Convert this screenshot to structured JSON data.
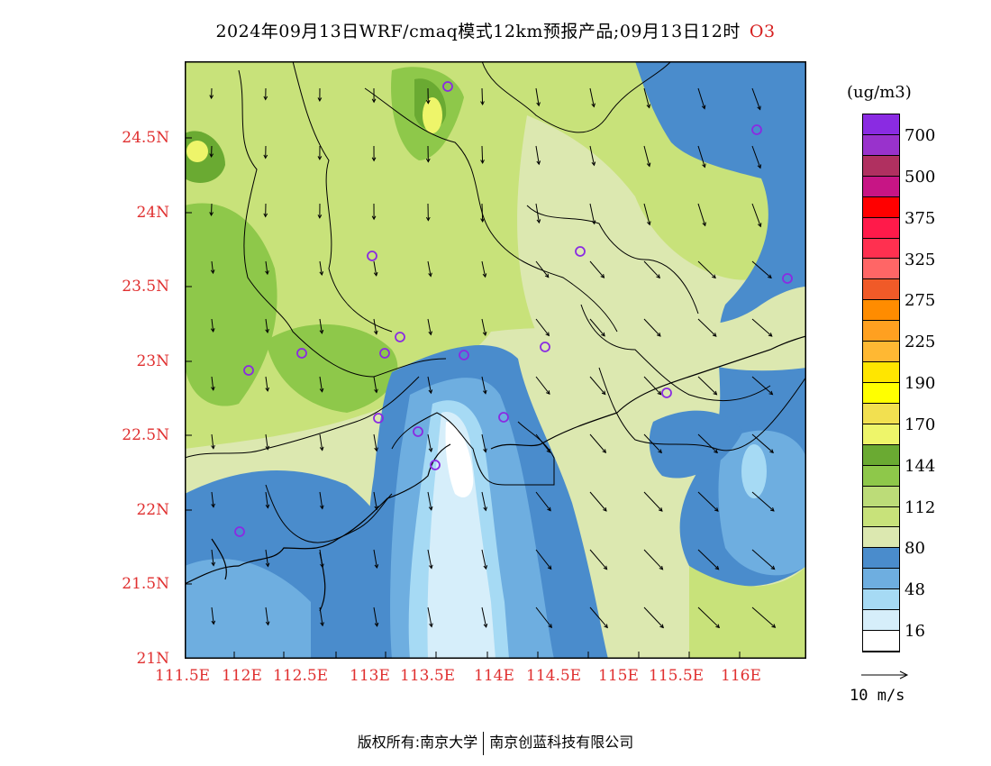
{
  "title": {
    "main": "2024年09月13日WRF/cmaq模式12km预报产品;09月13日12时",
    "species": "O3"
  },
  "map": {
    "x_ticks": [
      "111.5E",
      "112E",
      "112.5E",
      "113E",
      "113.5E",
      "114E",
      "114.5E",
      "115E",
      "115.5E",
      "116E"
    ],
    "y_ticks": [
      "24.5N",
      "24N",
      "23.5N",
      "23N",
      "22.5N",
      "22N",
      "21.5N",
      "21N"
    ]
  },
  "legend": {
    "unit": "(ug/m3)",
    "labels": [
      "700",
      "500",
      "375",
      "325",
      "275",
      "225",
      "190",
      "170",
      "144",
      "112",
      "80",
      "48",
      "16"
    ],
    "colors": [
      "#8a2be2",
      "#9932cc",
      "#b03060",
      "#c71585",
      "#ff0000",
      "#ff1a4a",
      "#ff3050",
      "#ff6666",
      "#f05a28",
      "#ff8c00",
      "#ffa020",
      "#ffb833",
      "#ffe600",
      "#ffff00",
      "#f2e050",
      "#eef56a",
      "#6aaa32",
      "#8ec84a",
      "#bcdc78",
      "#c8e27a",
      "#dce8b0",
      "#4a8ccc",
      "#6eaee0",
      "#a6daf4",
      "#d6eefa",
      "#ffffff"
    ]
  },
  "wind_reference": {
    "label": "10 m/s"
  },
  "footer": {
    "left": "版权所有:南京大学",
    "right": "南京创蓝科技有限公司"
  }
}
